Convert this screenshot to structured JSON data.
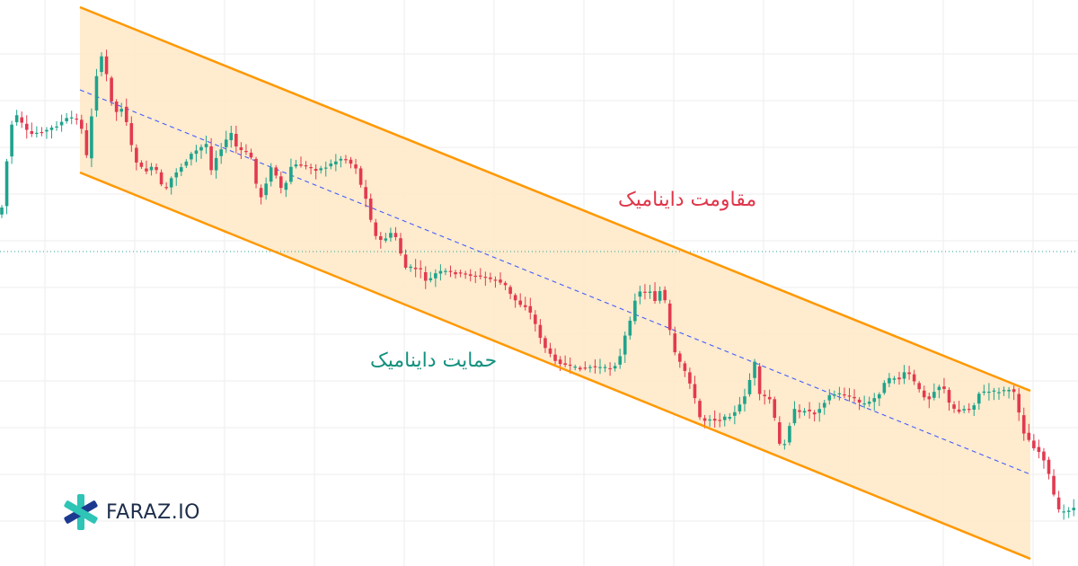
{
  "brand": {
    "name": "FARAZ.IO"
  },
  "colors": {
    "bull": "#1fa38c",
    "bear": "#e23a4f",
    "channel_line": "#ff9800",
    "channel_fill": "#ffe8c5",
    "midline": "#3d5afe",
    "hline": "#26a69a",
    "grid": "#eeeeee",
    "logo_primary": "#1b3a8f",
    "logo_accent": "#2ec4b6"
  },
  "chart_data": {
    "type": "candlestick",
    "title": "",
    "annotations": [
      {
        "id": "resistance",
        "text": "مقاومت داینامیک"
      },
      {
        "id": "support",
        "text": "حمایت داینامیک"
      }
    ],
    "channel": {
      "direction": "descending",
      "midline": "dashed",
      "filled": true
    },
    "horizontal_level": {
      "style": "dotted"
    },
    "grid": true,
    "trend": [
      [
        0,
        238
      ],
      [
        5,
        230
      ],
      [
        12,
        160
      ],
      [
        18,
        125
      ],
      [
        25,
        135
      ],
      [
        35,
        150
      ],
      [
        42,
        148
      ],
      [
        55,
        145
      ],
      [
        65,
        140
      ],
      [
        80,
        130
      ],
      [
        92,
        135
      ],
      [
        100,
        180
      ],
      [
        106,
        110
      ],
      [
        112,
        70
      ],
      [
        118,
        60
      ],
      [
        124,
        105
      ],
      [
        132,
        125
      ],
      [
        140,
        118
      ],
      [
        148,
        160
      ],
      [
        156,
        185
      ],
      [
        165,
        190
      ],
      [
        175,
        185
      ],
      [
        185,
        215
      ],
      [
        195,
        195
      ],
      [
        205,
        185
      ],
      [
        215,
        172
      ],
      [
        225,
        165
      ],
      [
        232,
        160
      ],
      [
        238,
        190
      ],
      [
        245,
        170
      ],
      [
        252,
        160
      ],
      [
        260,
        148
      ],
      [
        266,
        165
      ],
      [
        272,
        168
      ],
      [
        280,
        172
      ],
      [
        285,
        180
      ],
      [
        290,
        228
      ],
      [
        298,
        205
      ],
      [
        305,
        185
      ],
      [
        312,
        200
      ],
      [
        318,
        218
      ],
      [
        325,
        186
      ],
      [
        335,
        183
      ],
      [
        345,
        186
      ],
      [
        355,
        189
      ],
      [
        365,
        186
      ],
      [
        375,
        180
      ],
      [
        385,
        175
      ],
      [
        393,
        182
      ],
      [
        400,
        188
      ],
      [
        405,
        210
      ],
      [
        412,
        225
      ],
      [
        418,
        260
      ],
      [
        425,
        268
      ],
      [
        432,
        265
      ],
      [
        440,
        258
      ],
      [
        446,
        270
      ],
      [
        452,
        298
      ],
      [
        460,
        298
      ],
      [
        470,
        300
      ],
      [
        478,
        315
      ],
      [
        486,
        305
      ],
      [
        495,
        302
      ],
      [
        505,
        303
      ],
      [
        515,
        305
      ],
      [
        525,
        306
      ],
      [
        535,
        307
      ],
      [
        545,
        310
      ],
      [
        555,
        312
      ],
      [
        565,
        318
      ],
      [
        572,
        330
      ],
      [
        580,
        338
      ],
      [
        590,
        342
      ],
      [
        598,
        360
      ],
      [
        605,
        378
      ],
      [
        612,
        392
      ],
      [
        620,
        400
      ],
      [
        628,
        405
      ],
      [
        636,
        408
      ],
      [
        645,
        410
      ],
      [
        655,
        409
      ],
      [
        665,
        408
      ],
      [
        675,
        410
      ],
      [
        685,
        409
      ],
      [
        692,
        400
      ],
      [
        698,
        375
      ],
      [
        705,
        355
      ],
      [
        712,
        320
      ],
      [
        718,
        328
      ],
      [
        725,
        322
      ],
      [
        732,
        335
      ],
      [
        740,
        318
      ],
      [
        745,
        350
      ],
      [
        752,
        390
      ],
      [
        760,
        405
      ],
      [
        768,
        418
      ],
      [
        775,
        440
      ],
      [
        780,
        462
      ],
      [
        785,
        470
      ],
      [
        790,
        465
      ],
      [
        800,
        468
      ],
      [
        810,
        465
      ],
      [
        820,
        460
      ],
      [
        828,
        448
      ],
      [
        835,
        432
      ],
      [
        842,
        400
      ],
      [
        848,
        440
      ],
      [
        855,
        442
      ],
      [
        862,
        446
      ],
      [
        868,
        490
      ],
      [
        872,
        498
      ],
      [
        878,
        490
      ],
      [
        885,
        455
      ],
      [
        892,
        460
      ],
      [
        900,
        455
      ],
      [
        908,
        462
      ],
      [
        918,
        450
      ],
      [
        926,
        440
      ],
      [
        935,
        438
      ],
      [
        945,
        440
      ],
      [
        955,
        445
      ],
      [
        962,
        450
      ],
      [
        970,
        448
      ],
      [
        980,
        440
      ],
      [
        988,
        425
      ],
      [
        996,
        420
      ],
      [
        1004,
        422
      ],
      [
        1012,
        412
      ],
      [
        1020,
        425
      ],
      [
        1028,
        438
      ],
      [
        1036,
        445
      ],
      [
        1044,
        432
      ],
      [
        1052,
        428
      ],
      [
        1060,
        452
      ],
      [
        1068,
        458
      ],
      [
        1076,
        455
      ],
      [
        1084,
        456
      ],
      [
        1092,
        438
      ],
      [
        1100,
        436
      ],
      [
        1110,
        436
      ],
      [
        1120,
        435
      ],
      [
        1128,
        433
      ],
      [
        1134,
        442
      ],
      [
        1140,
        478
      ],
      [
        1148,
        490
      ],
      [
        1155,
        500
      ],
      [
        1162,
        505
      ],
      [
        1168,
        520
      ],
      [
        1174,
        545
      ],
      [
        1180,
        568
      ],
      [
        1188,
        570
      ],
      [
        1196,
        565
      ],
      [
        1200,
        566
      ]
    ]
  }
}
